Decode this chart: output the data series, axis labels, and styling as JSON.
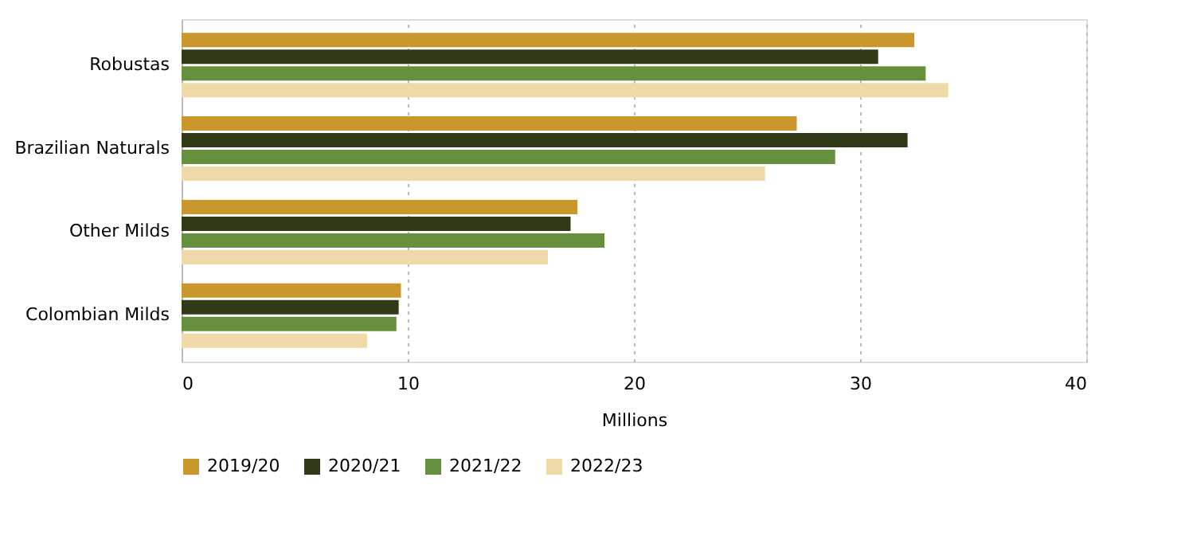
{
  "chart_data": {
    "type": "bar",
    "orientation": "horizontal",
    "xlabel": "Millions",
    "categories": [
      "Robustas",
      "Brazilian Naturals",
      "Other Milds",
      "Colombian Milds"
    ],
    "series": [
      {
        "name": "2019/20",
        "color": "#c9972b",
        "values": [
          32.4,
          27.2,
          17.5,
          9.7
        ]
      },
      {
        "name": "2020/21",
        "color": "#303a17",
        "values": [
          30.8,
          32.1,
          17.2,
          9.6
        ]
      },
      {
        "name": "2021/22",
        "color": "#668f3e",
        "values": [
          32.9,
          28.9,
          18.7,
          9.5
        ]
      },
      {
        "name": "2022/23",
        "color": "#efd9a8",
        "values": [
          33.9,
          25.8,
          16.2,
          8.2
        ]
      }
    ],
    "xlim": [
      0,
      40
    ],
    "xticks": [
      0,
      10,
      20,
      30,
      40
    ],
    "grid": "x",
    "legend": "bottom"
  }
}
